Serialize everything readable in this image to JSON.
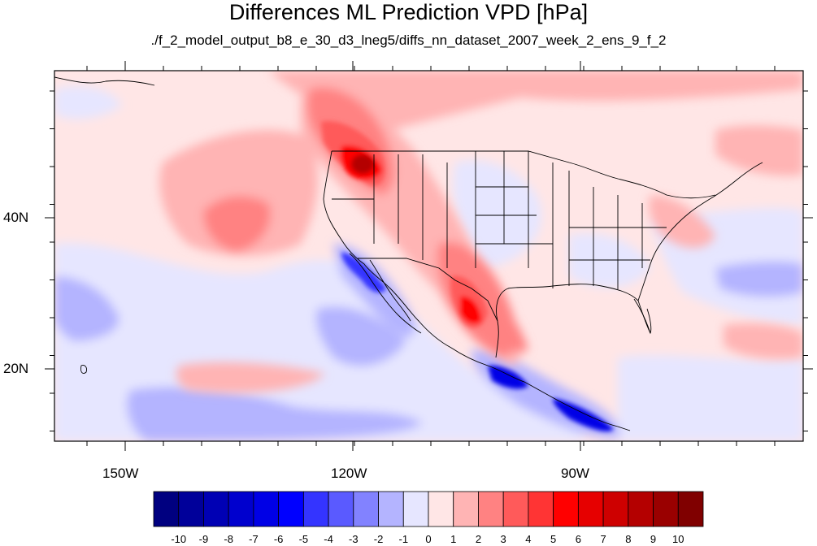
{
  "title": "Differences ML Prediction VPD [hPa]",
  "subtitle": "./f_2_model_output_b8_e_30_d3_lneg5/diffs_nn_dataset_2007_week_2_ens_9_f_2",
  "lon_labels": [
    "150W",
    "120W",
    "90W"
  ],
  "lat_labels": [
    "40N",
    "20N"
  ],
  "colorbar": {
    "labels": [
      "-10",
      "-9",
      "-8",
      "-7",
      "-6",
      "-5",
      "-4",
      "-3",
      "-2",
      "-1",
      "0",
      "1",
      "2",
      "3",
      "4",
      "5",
      "6",
      "7",
      "8",
      "9",
      "10"
    ],
    "colors": [
      "#000080",
      "#00009a",
      "#0000b4",
      "#0000ce",
      "#0000e6",
      "#0000ff",
      "#3434ff",
      "#5a5aff",
      "#8282ff",
      "#b4b4ff",
      "#e6e6ff",
      "#ffe6e6",
      "#ffb4b4",
      "#ff8282",
      "#ff5a5a",
      "#ff3434",
      "#ff0000",
      "#e60000",
      "#ce0000",
      "#b40000",
      "#9a0000",
      "#800000"
    ]
  },
  "field_colors": {
    "background": "#ffe6e6",
    "weak_negative": "#e6e6ff",
    "negative": "#b4b4ff",
    "moderate_negative": "#8282ff",
    "strong_negative": "#3434ff",
    "very_strong_negative": "#0000e6",
    "weak_positive": "#ffb4b4",
    "positive": "#ff8282",
    "moderate_positive": "#ff5a5a",
    "strong_positive": "#ff0000",
    "very_strong_positive": "#b40000"
  }
}
